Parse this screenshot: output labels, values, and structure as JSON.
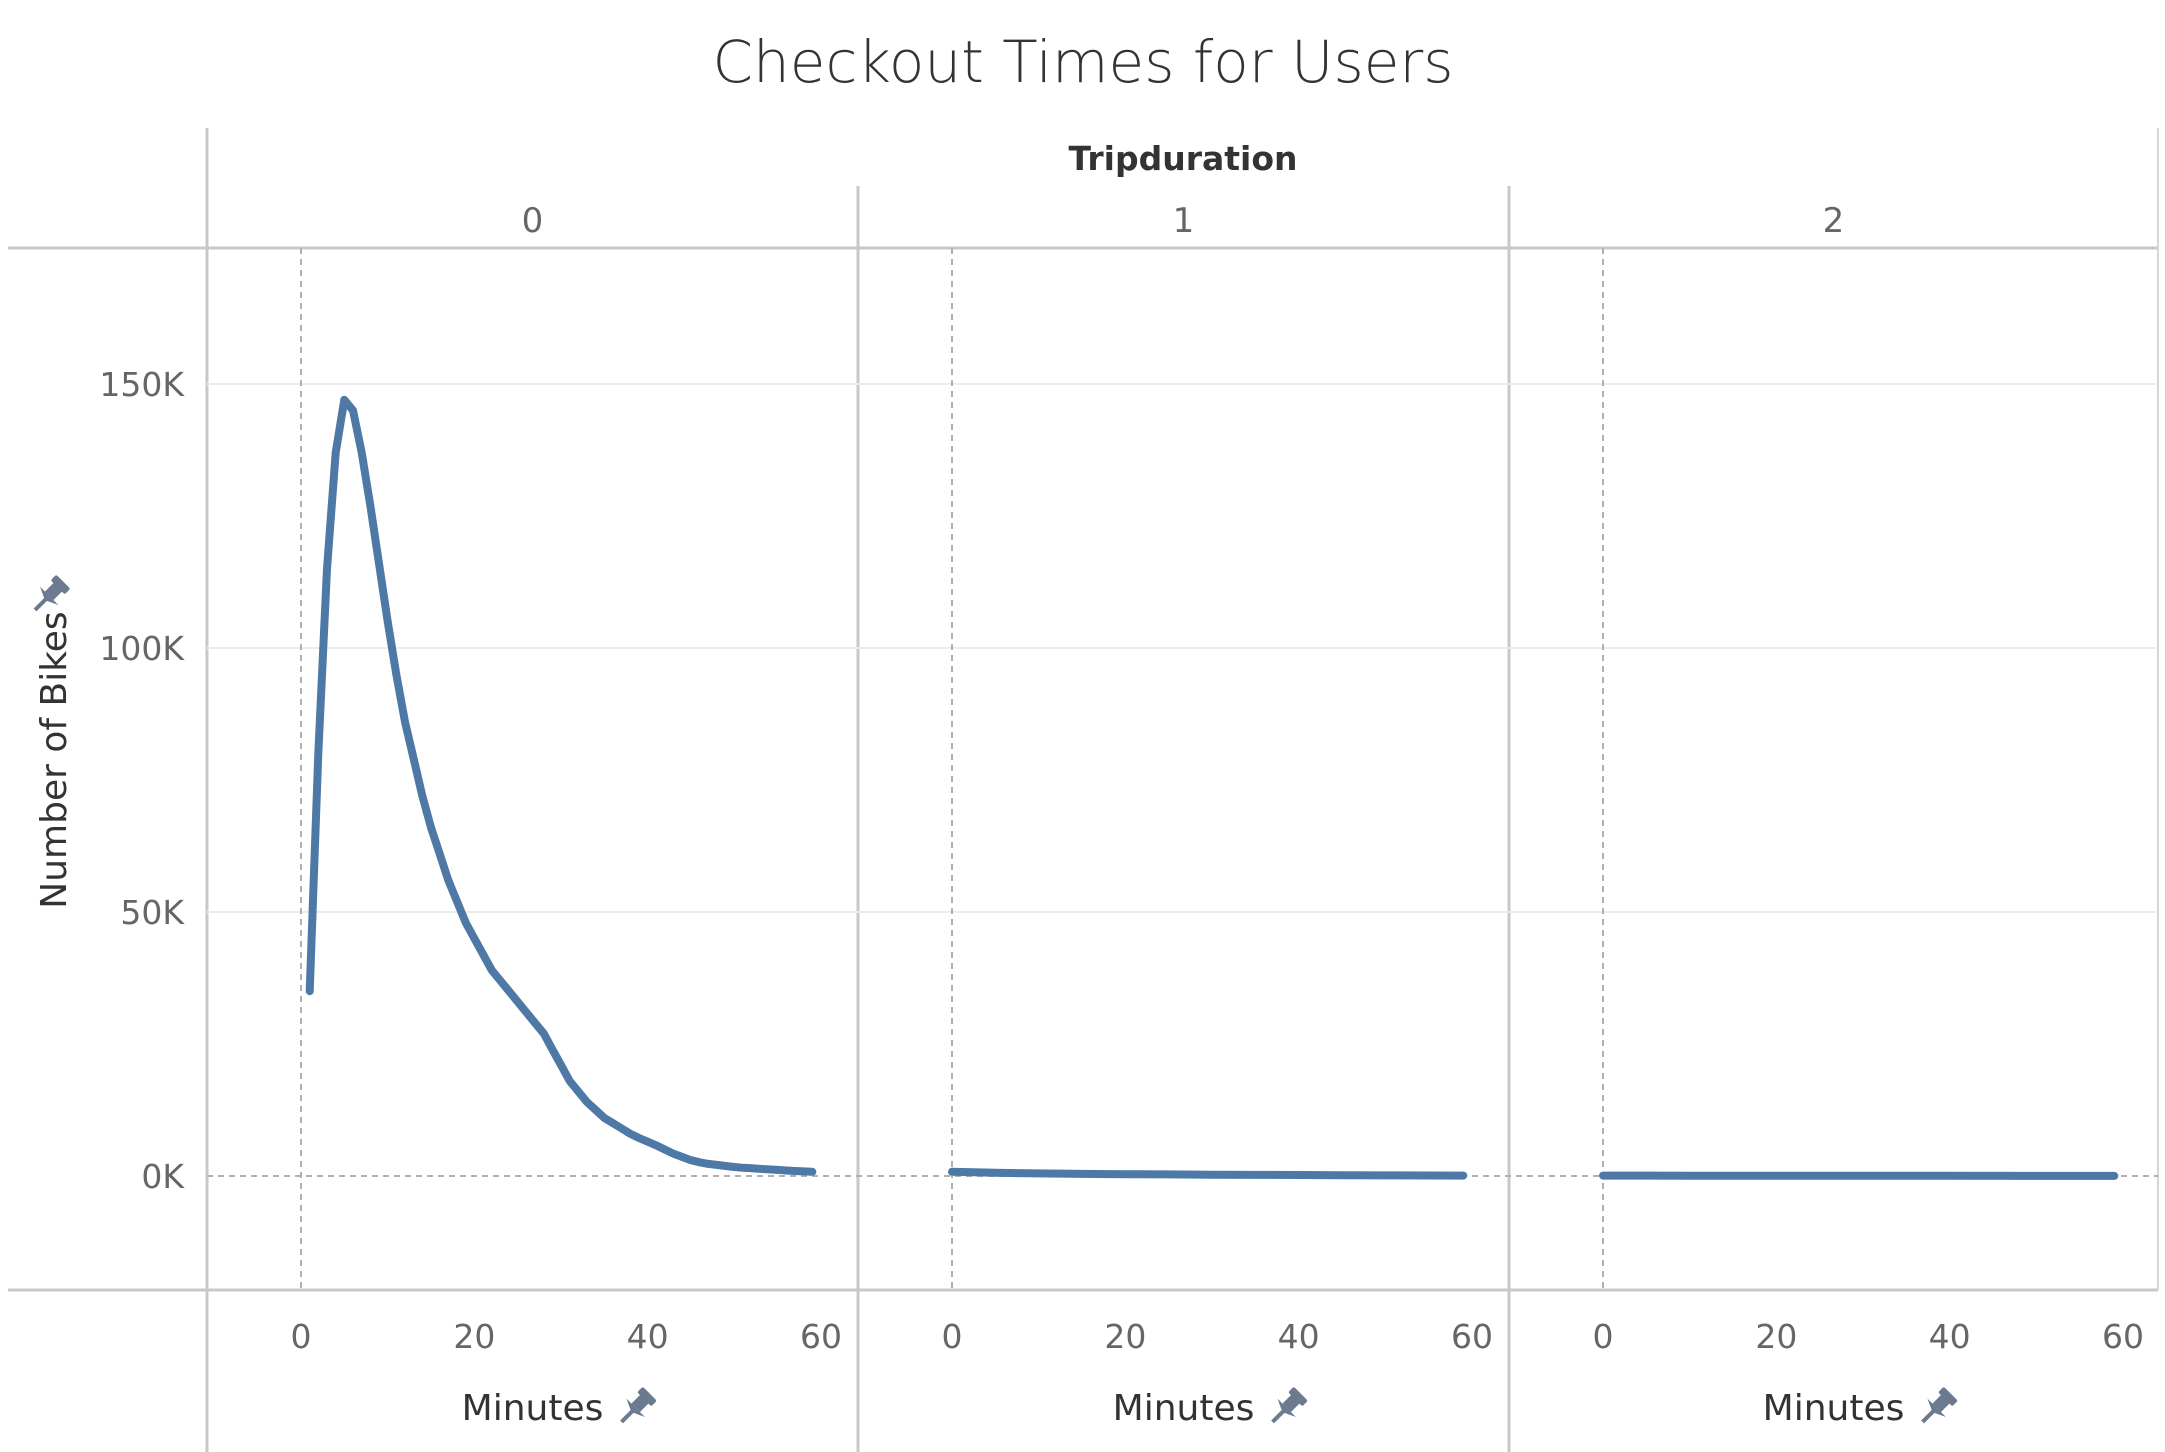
{
  "chart_data": {
    "type": "line",
    "title": "Checkout Times for Users",
    "column_header": "Tripduration",
    "xlabel": "Minutes",
    "ylabel": "Number of Bikes",
    "xlim": [
      0,
      60
    ],
    "ylim": [
      -20000,
      170000
    ],
    "x_ticks": [
      "0",
      "20",
      "40",
      "60"
    ],
    "y_ticks": [
      "150K",
      "100K",
      "50K",
      "0K"
    ],
    "y_tick_values": [
      150000,
      100000,
      50000,
      0
    ],
    "grid": true,
    "line_color": "#4e79a7",
    "panels": [
      {
        "label": "0",
        "x": [
          1,
          2,
          3,
          4,
          5,
          6,
          7,
          8,
          9,
          10,
          11,
          12,
          13,
          14,
          15,
          16,
          17,
          18,
          19,
          20,
          21,
          22,
          23,
          24,
          25,
          26,
          27,
          28,
          29,
          30,
          31,
          32,
          33,
          34,
          35,
          36,
          37,
          38,
          39,
          40,
          41,
          42,
          43,
          44,
          45,
          46,
          47,
          48,
          49,
          50,
          51,
          52,
          53,
          54,
          55,
          56,
          57,
          58,
          59
        ],
        "y": [
          35000,
          80000,
          115000,
          137000,
          147000,
          145000,
          137000,
          127000,
          116000,
          105000,
          95000,
          86000,
          79000,
          72000,
          66000,
          61000,
          56000,
          52000,
          48000,
          45000,
          42000,
          39000,
          37000,
          35000,
          33000,
          31000,
          29000,
          27000,
          24000,
          21000,
          18000,
          16000,
          14000,
          12500,
          11000,
          10000,
          9000,
          8000,
          7200,
          6500,
          5800,
          5000,
          4200,
          3600,
          3000,
          2600,
          2300,
          2100,
          1900,
          1700,
          1550,
          1450,
          1350,
          1250,
          1150,
          1050,
          950,
          880,
          800
        ]
      },
      {
        "label": "1",
        "x": [
          0,
          5,
          10,
          15,
          20,
          25,
          30,
          35,
          40,
          45,
          50,
          55,
          59
        ],
        "y": [
          800,
          600,
          500,
          400,
          350,
          300,
          250,
          200,
          180,
          150,
          120,
          100,
          80
        ]
      },
      {
        "label": "2",
        "x": [
          0,
          10,
          20,
          30,
          40,
          50,
          59
        ],
        "y": [
          80,
          60,
          50,
          40,
          30,
          20,
          10
        ]
      }
    ]
  }
}
